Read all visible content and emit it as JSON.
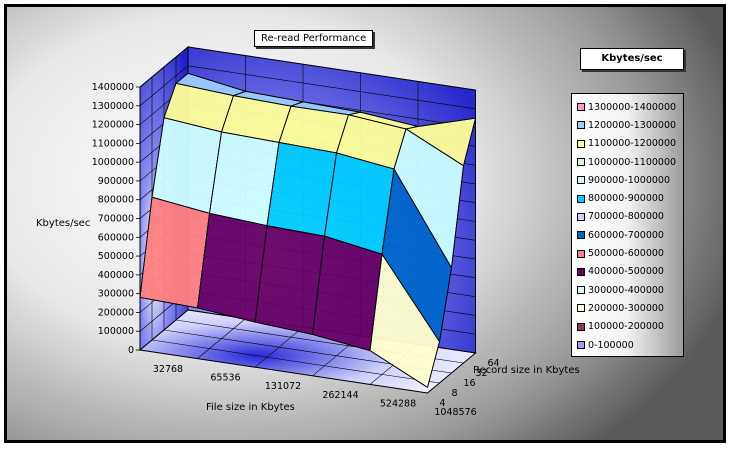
{
  "chart_data": {
    "type": "surface-3d",
    "title": "Re-read Performance",
    "zlabel": "Kbytes/sec",
    "xlabel": "File size in Kbytes",
    "ylabel": "Record size in Kbytes",
    "zlim": [
      0,
      1400000
    ],
    "z_ticks": [
      "0",
      "100000",
      "200000",
      "300000",
      "400000",
      "500000",
      "600000",
      "700000",
      "800000",
      "900000",
      "1000000",
      "1100000",
      "1200000",
      "1300000",
      "1400000"
    ],
    "file_sizes": [
      "32768",
      "65536",
      "131072",
      "262144",
      "524288",
      "1048576"
    ],
    "record_sizes": [
      "4",
      "8",
      "16",
      "32",
      "64"
    ],
    "legend_title": "Kbytes/sec",
    "legend": [
      {
        "label": "1300000-1400000",
        "color": "#ff99cc"
      },
      {
        "label": "1200000-1300000",
        "color": "#99ccff"
      },
      {
        "label": "1100000-1200000",
        "color": "#ffff99"
      },
      {
        "label": "1000000-1100000",
        "color": "#ccffcc"
      },
      {
        "label": "900000-1000000",
        "color": "#ccffff"
      },
      {
        "label": "800000-900000",
        "color": "#00ccff"
      },
      {
        "label": "700000-800000",
        "color": "#ccccff"
      },
      {
        "label": "600000-700000",
        "color": "#0066cc"
      },
      {
        "label": "500000-600000",
        "color": "#ff8080"
      },
      {
        "label": "400000-500000",
        "color": "#660066"
      },
      {
        "label": "300000-400000",
        "color": "#ccffff"
      },
      {
        "label": "200000-300000",
        "color": "#ffffcc"
      },
      {
        "label": "100000-200000",
        "color": "#993366"
      },
      {
        "label": "0-100000",
        "color": "#9999ff"
      }
    ],
    "series": [
      {
        "name": "4",
        "values": [
          280000,
          270000,
          240000,
          220000,
          180000,
          30000
        ]
      },
      {
        "name": "8",
        "values": [
          760000,
          720000,
          700000,
          690000,
          640000,
          220000
        ]
      },
      {
        "name": "16",
        "values": [
          1130000,
          1100000,
          1090000,
          1080000,
          1040000,
          560000
        ]
      },
      {
        "name": "32",
        "values": [
          1260000,
          1240000,
          1230000,
          1230000,
          1200000,
          1050000
        ]
      },
      {
        "name": "64",
        "values": [
          1260000,
          1210000,
          1200000,
          1190000,
          1160000,
          1250000
        ]
      }
    ]
  }
}
